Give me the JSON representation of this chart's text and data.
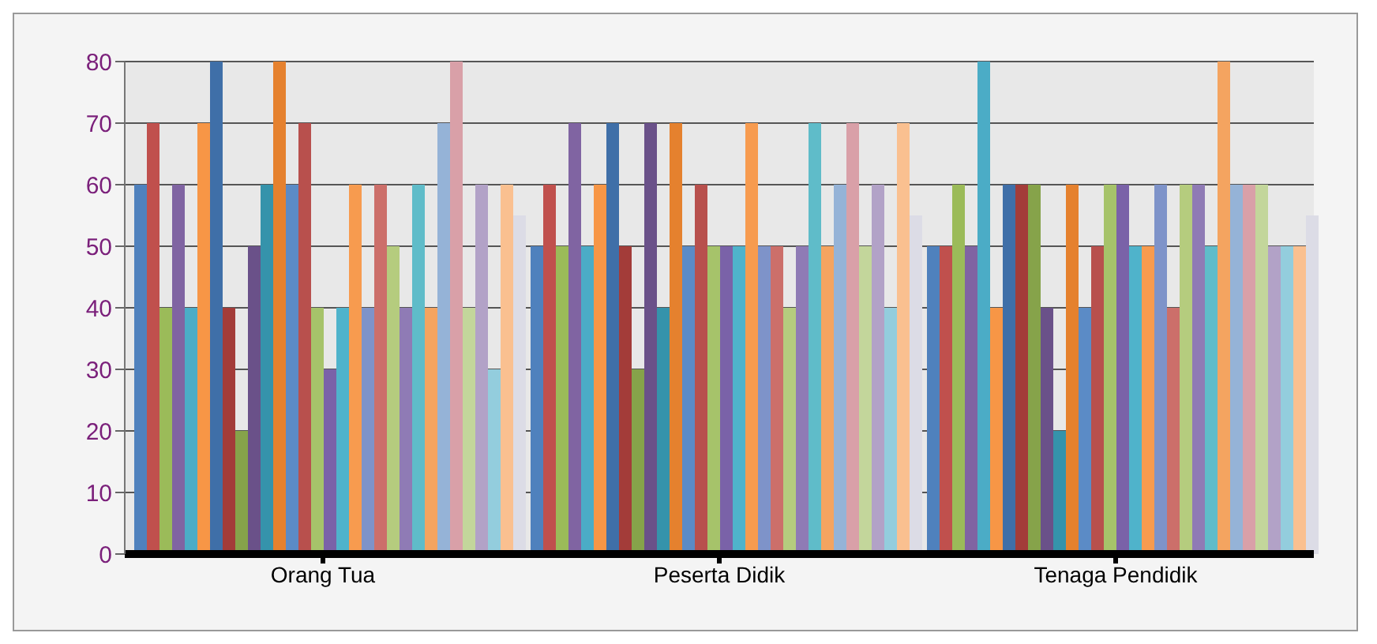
{
  "chart_data": {
    "type": "bar",
    "categories": [
      "Orang Tua",
      "Peserta Didik",
      "Tenaga Pendidik"
    ],
    "ylim": [
      0,
      80
    ],
    "yticks": [
      0,
      10,
      20,
      30,
      40,
      50,
      60,
      70,
      80
    ],
    "grid": "y",
    "series": [
      {
        "color": "#4f81bd",
        "values": [
          60,
          50,
          50
        ]
      },
      {
        "color": "#c0504d",
        "values": [
          70,
          60,
          50
        ]
      },
      {
        "color": "#9bbb59",
        "values": [
          40,
          50,
          60
        ]
      },
      {
        "color": "#8064a2",
        "values": [
          60,
          70,
          50
        ]
      },
      {
        "color": "#4bacc6",
        "values": [
          40,
          50,
          80
        ]
      },
      {
        "color": "#f79646",
        "values": [
          70,
          60,
          40
        ]
      },
      {
        "color": "#3f6fa8",
        "values": [
          80,
          70,
          60
        ]
      },
      {
        "color": "#a33c39",
        "values": [
          40,
          50,
          60
        ]
      },
      {
        "color": "#86a34a",
        "values": [
          20,
          30,
          60
        ]
      },
      {
        "color": "#6a5189",
        "values": [
          50,
          70,
          40
        ]
      },
      {
        "color": "#3593ab",
        "values": [
          60,
          40,
          20
        ]
      },
      {
        "color": "#e5812e",
        "values": [
          80,
          70,
          60
        ]
      },
      {
        "color": "#5b8bc6",
        "values": [
          60,
          50,
          40
        ]
      },
      {
        "color": "#b8504d",
        "values": [
          70,
          60,
          50
        ]
      },
      {
        "color": "#a6c36a",
        "values": [
          40,
          50,
          60
        ]
      },
      {
        "color": "#7a62a8",
        "values": [
          30,
          50,
          60
        ]
      },
      {
        "color": "#4fb3cb",
        "values": [
          40,
          50,
          50
        ]
      },
      {
        "color": "#f79b4f",
        "values": [
          60,
          70,
          50
        ]
      },
      {
        "color": "#7e93c9",
        "values": [
          40,
          50,
          60
        ]
      },
      {
        "color": "#cc6f6a",
        "values": [
          60,
          50,
          40
        ]
      },
      {
        "color": "#b5cc7e",
        "values": [
          50,
          40,
          60
        ]
      },
      {
        "color": "#8f7bb5",
        "values": [
          40,
          50,
          60
        ]
      },
      {
        "color": "#5fbcc9",
        "values": [
          60,
          70,
          50
        ]
      },
      {
        "color": "#f4a460",
        "values": [
          40,
          50,
          80
        ]
      },
      {
        "color": "#95b3d7",
        "values": [
          70,
          60,
          60
        ]
      },
      {
        "color": "#d9a0a8",
        "values": [
          80,
          70,
          60
        ]
      },
      {
        "color": "#c3d69b",
        "values": [
          40,
          50,
          60
        ]
      },
      {
        "color": "#b2a2c7",
        "values": [
          60,
          60,
          50
        ]
      },
      {
        "color": "#93cddd",
        "values": [
          30,
          40,
          50
        ]
      },
      {
        "color": "#fac090",
        "values": [
          60,
          70,
          50
        ]
      },
      {
        "color": "#dcdce6",
        "values": [
          55,
          55,
          55
        ]
      }
    ]
  }
}
